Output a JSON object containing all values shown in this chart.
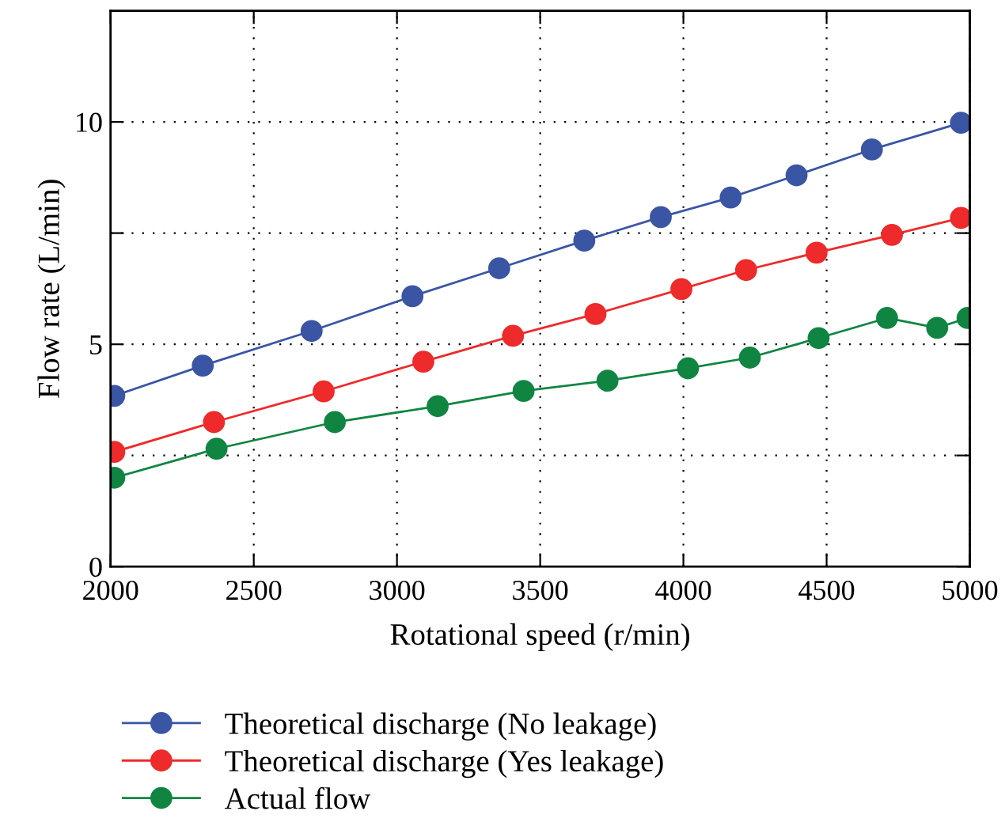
{
  "chart_data": {
    "type": "line",
    "xlabel": "Rotational speed (r/min)",
    "ylabel": "Flow rate (L/min)",
    "xlim": [
      2000,
      5000
    ],
    "xticks": [
      2000,
      2500,
      3000,
      3500,
      4000,
      4500,
      5000
    ],
    "ylim": [
      0,
      12.5
    ],
    "yticks": [
      0,
      {
        "value": 2.5,
        "label": null
      },
      5,
      {
        "value": 7.5,
        "label": null
      },
      10
    ],
    "grid": true,
    "legend": "bottom",
    "marker": "circle",
    "line_style": "solid",
    "series": [
      {
        "name": "Theoretical discharge (No leakage)",
        "color": "#3a55a4",
        "x": [
          2013,
          2322,
          2702,
          3054,
          3357,
          3654,
          3921,
          4165,
          4395,
          4658,
          4969
        ],
        "values": [
          3.84,
          4.52,
          5.3,
          6.08,
          6.71,
          7.33,
          7.86,
          8.3,
          8.8,
          9.38,
          9.98
        ]
      },
      {
        "name": "Theoretical discharge (Yes leakage)",
        "color": "#ee2a2a",
        "x": [
          2013,
          2361,
          2744,
          3092,
          3405,
          3693,
          3993,
          4219,
          4465,
          4728,
          4969
        ],
        "values": [
          2.58,
          3.25,
          3.94,
          4.61,
          5.19,
          5.68,
          6.24,
          6.67,
          7.06,
          7.46,
          7.84
        ]
      },
      {
        "name": "Actual flow",
        "color": "#108542",
        "x": [
          2013,
          2370,
          2783,
          3142,
          3442,
          3735,
          4016,
          4232,
          4472,
          4711,
          4886,
          4992
        ],
        "values": [
          2.0,
          2.65,
          3.25,
          3.61,
          3.95,
          4.18,
          4.46,
          4.7,
          5.14,
          5.59,
          5.37,
          5.59
        ]
      }
    ]
  }
}
